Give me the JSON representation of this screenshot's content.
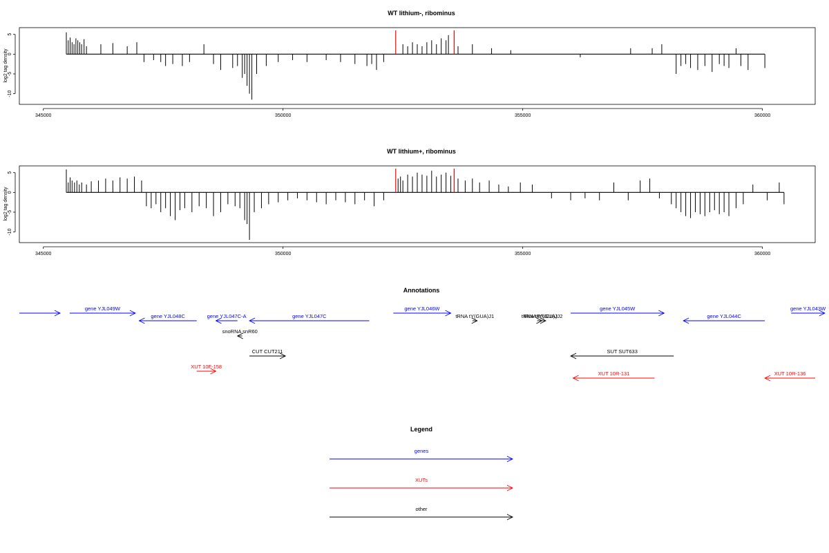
{
  "chart_data": [
    {
      "type": "bar",
      "title": "WT lithium-, ribominus",
      "ylabel": "log2 tag density",
      "xlim": [
        344500,
        361100
      ],
      "ylim": [
        -12,
        6
      ],
      "x_ticks": [
        345000,
        350000,
        355000,
        360000
      ],
      "x_tick_labels": [
        "345000",
        "350000",
        "355000",
        "360000"
      ],
      "y_ticks": [
        5,
        0,
        -5,
        -10
      ],
      "y_tick_labels": [
        "5",
        "0",
        "-5",
        "-10"
      ],
      "highlight_positions": [
        352350,
        353570
      ],
      "highlight_color": "#ff0000",
      "x": [
        345480,
        345520,
        345560,
        345600,
        345640,
        345680,
        345720,
        345760,
        345800,
        345850,
        345900,
        346200,
        346450,
        346750,
        346950,
        347100,
        347300,
        347450,
        347550,
        347700,
        347900,
        348050,
        348350,
        348550,
        348700,
        348950,
        349050,
        349150,
        349200,
        349250,
        349300,
        349350,
        349450,
        349650,
        349900,
        350200,
        350500,
        350900,
        351200,
        351500,
        351750,
        351850,
        351950,
        352100,
        352500,
        352600,
        352700,
        352800,
        352900,
        353000,
        353100,
        353200,
        353300,
        353400,
        353450,
        353650,
        353950,
        354350,
        354750,
        356200,
        357250,
        357700,
        357900,
        358200,
        358300,
        358400,
        358500,
        358650,
        358800,
        358950,
        359100,
        359200,
        359300,
        359450,
        359550,
        359700,
        360050
      ],
      "values": [
        5.5,
        3.5,
        4.2,
        3,
        2.5,
        4,
        3.5,
        3,
        2.5,
        3.8,
        2,
        2.5,
        2.8,
        2,
        3,
        -2,
        -1.5,
        -2,
        -3,
        -2.5,
        -3,
        -2,
        2.5,
        -2.5,
        -4,
        -3.5,
        -3,
        -6,
        -5,
        -8,
        -10,
        -11.5,
        -5,
        -3,
        -2,
        -1.5,
        -2,
        -1.5,
        -2,
        -2.5,
        -3,
        -2.5,
        -4,
        -2,
        2.5,
        2,
        3,
        2.5,
        2,
        3,
        3.5,
        2.5,
        4,
        3.5,
        4.8,
        2,
        2.5,
        1.5,
        1,
        -0.8,
        1.5,
        1.5,
        2.5,
        -5,
        -3,
        -2.5,
        -3.5,
        -4,
        -3,
        -4.5,
        -2.5,
        -3,
        -3.5,
        1.5,
        -3,
        -4,
        -3.5
      ]
    },
    {
      "type": "bar",
      "title": "WT lithium+, ribominus",
      "ylabel": "log2 tag density",
      "xlim": [
        344500,
        361100
      ],
      "ylim": [
        -12,
        6
      ],
      "x_ticks": [
        345000,
        350000,
        355000,
        360000
      ],
      "x_tick_labels": [
        "345000",
        "350000",
        "355000",
        "360000"
      ],
      "y_ticks": [
        5,
        0,
        -5,
        -10
      ],
      "y_tick_labels": [
        "5",
        "0",
        "-5",
        "-10"
      ],
      "highlight_positions": [
        352350,
        353570
      ],
      "highlight_color": "#ff0000",
      "x": [
        345480,
        345520,
        345560,
        345600,
        345650,
        345700,
        345750,
        345800,
        345900,
        346000,
        346150,
        346300,
        346450,
        346600,
        346750,
        346900,
        347050,
        347150,
        347250,
        347350,
        347450,
        347550,
        347650,
        347750,
        347850,
        347950,
        348100,
        348250,
        348400,
        348550,
        348700,
        348850,
        349000,
        349100,
        349200,
        349250,
        349300,
        349400,
        349550,
        349700,
        349900,
        350100,
        350300,
        350500,
        350700,
        350900,
        351100,
        351300,
        351500,
        351700,
        351900,
        352100,
        352400,
        352450,
        352500,
        352600,
        352700,
        352800,
        352900,
        353000,
        353100,
        353200,
        353300,
        353400,
        353500,
        353650,
        353800,
        353950,
        354100,
        354300,
        354500,
        354700,
        354950,
        355200,
        355600,
        356000,
        356300,
        356600,
        356900,
        357200,
        357450,
        357650,
        357850,
        358100,
        358200,
        358300,
        358400,
        358500,
        358600,
        358700,
        358800,
        358900,
        359000,
        359100,
        359200,
        359300,
        359450,
        359600,
        359800,
        360100,
        360350,
        360450
      ],
      "values": [
        5.8,
        2.5,
        3.8,
        3,
        2.5,
        3,
        2,
        2.5,
        2,
        2.8,
        3,
        3.5,
        3,
        3.8,
        3.5,
        4,
        3,
        -3.5,
        -4,
        -3,
        -5,
        -4,
        -6,
        -7,
        -4.5,
        -4,
        -5,
        -3.5,
        -4,
        -6,
        -5,
        -3,
        -3.5,
        -4,
        -7,
        -8,
        -12,
        -5,
        -4,
        -3,
        -2.5,
        -2,
        -1.5,
        -2,
        -2.5,
        -3,
        -2,
        -2.5,
        -3,
        -2,
        -3.5,
        -2,
        3.5,
        4,
        3,
        4.5,
        4,
        5,
        4.5,
        4.2,
        5.5,
        4,
        4.5,
        5,
        4.2,
        3.5,
        3,
        3.5,
        2.5,
        3,
        2,
        1.5,
        2.5,
        2,
        -1.5,
        -2,
        -1.5,
        -2,
        2.5,
        -2,
        3,
        3.5,
        -1.5,
        -3,
        -4,
        -5,
        -6,
        -6.5,
        -5,
        -5.5,
        -6,
        -5,
        -4.5,
        -5.5,
        -5,
        -6,
        -4,
        -3,
        2,
        -2,
        2.5,
        -3
      ]
    }
  ],
  "annotations": {
    "title": "Annotations",
    "features": [
      {
        "label": "",
        "kind": "gene",
        "start": 344500,
        "end": 345350,
        "strand": "+",
        "row": 0
      },
      {
        "label": "gene YJL049W",
        "kind": "gene",
        "start": 345550,
        "end": 346920,
        "strand": "+",
        "row": 0
      },
      {
        "label": "gene YJL048C",
        "kind": "gene",
        "start": 347000,
        "end": 348200,
        "strand": "-",
        "row": 1
      },
      {
        "label": "gene YJL047C-A",
        "kind": "gene",
        "start": 348600,
        "end": 349050,
        "strand": "-",
        "row": 1
      },
      {
        "label": "gene YJL047C",
        "kind": "gene",
        "start": 349300,
        "end": 351800,
        "strand": "-",
        "row": 1
      },
      {
        "label": "gene YJL046W",
        "kind": "gene",
        "start": 352300,
        "end": 353500,
        "strand": "+",
        "row": 0
      },
      {
        "label": "gene YJL045W",
        "kind": "gene",
        "start": 356000,
        "end": 357950,
        "strand": "+",
        "row": 0
      },
      {
        "label": "gene YJL044C",
        "kind": "gene",
        "start": 358350,
        "end": 360050,
        "strand": "-",
        "row": 1
      },
      {
        "label": "gene YJL043W",
        "kind": "gene",
        "start": 360600,
        "end": 361300,
        "strand": "+",
        "row": 0
      },
      {
        "label": "tRNA tY(GUA)J1",
        "kind": "other",
        "start": 353950,
        "end": 354050,
        "strand": "+",
        "row": 1
      },
      {
        "label": "tRNA tR(UCU)J",
        "kind": "other",
        "start": 355300,
        "end": 355400,
        "strand": "+",
        "row": 1
      },
      {
        "label": "tRNA tY(GUA)J2",
        "kind": "other",
        "start": 355380,
        "end": 355480,
        "strand": "+",
        "row": 1
      },
      {
        "label": "snoRNA snR60",
        "kind": "other",
        "start": 349050,
        "end": 349150,
        "strand": "-",
        "row": 2
      },
      {
        "label": "CUT CUT211",
        "kind": "other",
        "start": 349300,
        "end": 350050,
        "strand": "+",
        "row": 3
      },
      {
        "label": "SUT SUT633",
        "kind": "other",
        "start": 356000,
        "end": 358150,
        "strand": "-",
        "row": 3
      },
      {
        "label": "XUT 10F-158",
        "kind": "xut",
        "start": 348200,
        "end": 348600,
        "strand": "+",
        "row": 4
      },
      {
        "label": "XUT 10R-131",
        "kind": "xut",
        "start": 356050,
        "end": 357750,
        "strand": "-",
        "row": 5
      },
      {
        "label": "XUT 10R-136",
        "kind": "xut",
        "start": 360050,
        "end": 361100,
        "strand": "-",
        "row": 5
      }
    ]
  },
  "legend": {
    "title": "Legend",
    "items": [
      {
        "label": "genes",
        "color": "#0000ff"
      },
      {
        "label": "XUTs",
        "color": "#ff0000"
      },
      {
        "label": "other",
        "color": "#000000"
      }
    ]
  },
  "colors": {
    "gene": "#0000ff",
    "xut": "#ff0000",
    "other": "#000000"
  }
}
